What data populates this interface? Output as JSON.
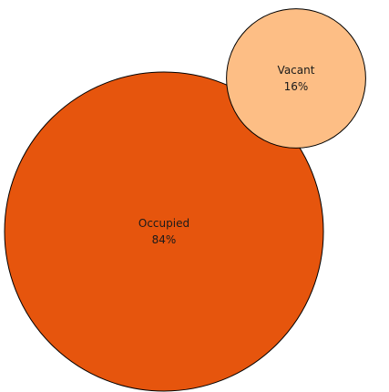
{
  "chart_data": {
    "type": "bubble",
    "title": "",
    "categories": [
      "Occupied",
      "Vacant"
    ],
    "values": [
      84,
      16
    ],
    "value_labels": [
      "84%",
      "16%"
    ],
    "colors": [
      "#e6550d",
      "#fdbe85"
    ],
    "legend": "none",
    "grid": false
  }
}
